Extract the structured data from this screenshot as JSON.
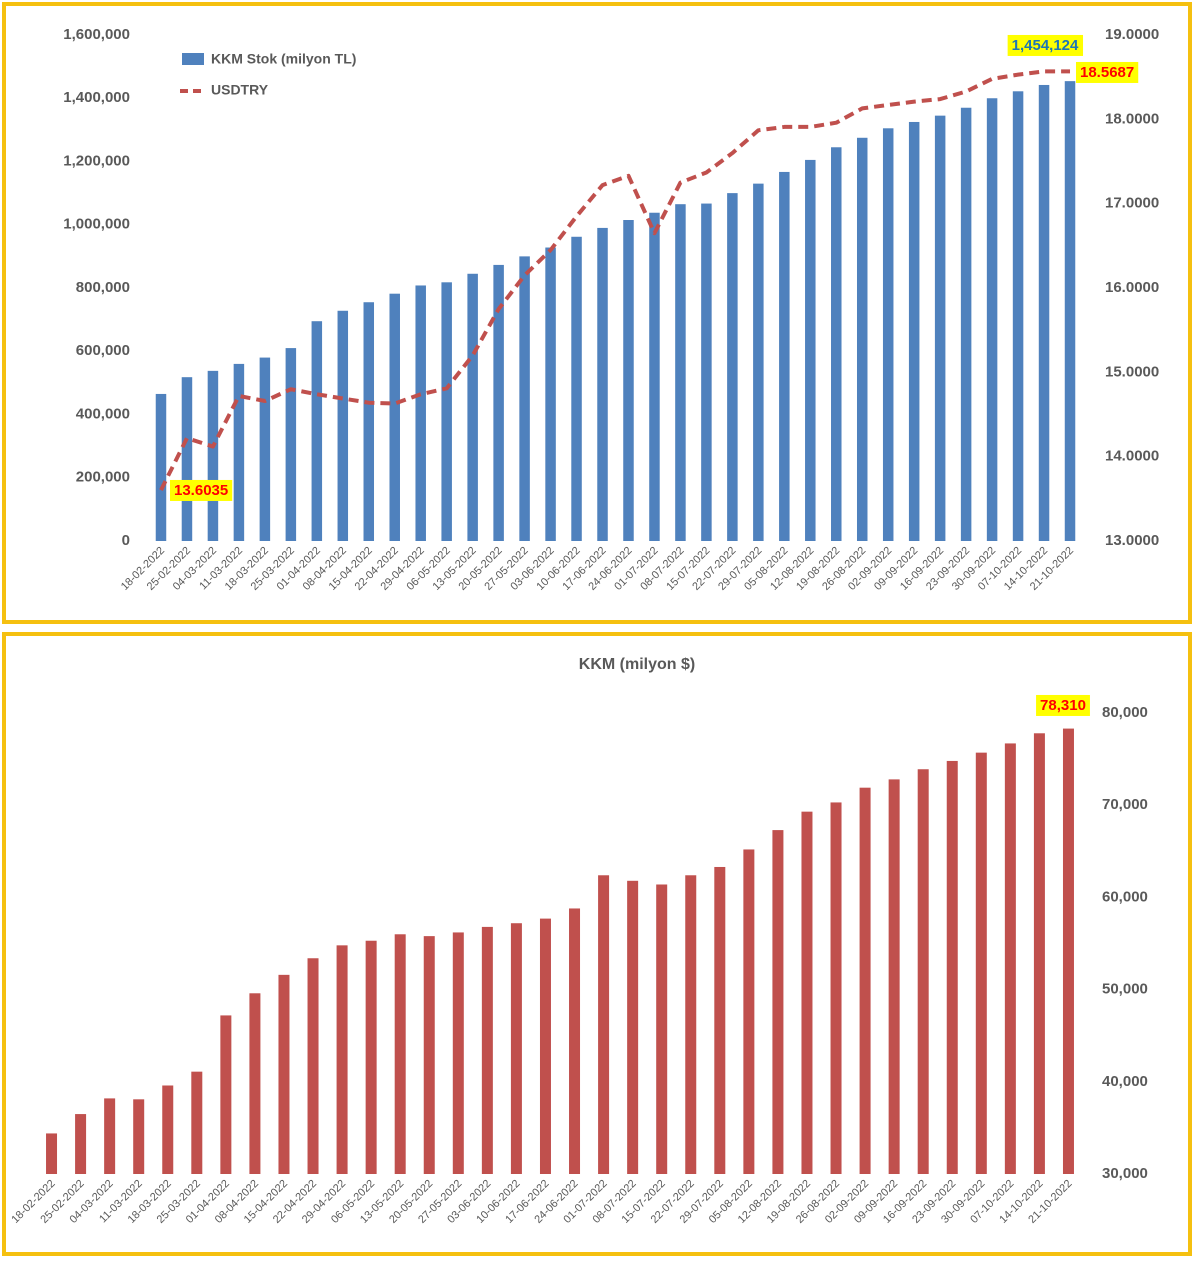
{
  "colors": {
    "frame": "#f5c010",
    "kkm_bar": "#4f81bd",
    "usdtry_line": "#c0504d",
    "usd_bar": "#c0504d",
    "annotation_bg": "#ffff00",
    "annotation_blue": "#1f77b4",
    "annotation_red": "#ff0000"
  },
  "chart_data": [
    {
      "type": "bar",
      "title": "",
      "categories": [
        "18-02-2022",
        "25-02-2022",
        "04-03-2022",
        "11-03-2022",
        "18-03-2022",
        "25-03-2022",
        "01-04-2022",
        "08-04-2022",
        "15-04-2022",
        "22-04-2022",
        "29-04-2022",
        "06-05-2022",
        "13-05-2022",
        "20-05-2022",
        "27-05-2022",
        "03-06-2022",
        "10-06-2022",
        "17-06-2022",
        "24-06-2022",
        "01-07-2022",
        "08-07-2022",
        "15-07-2022",
        "22-07-2022",
        "29-07-2022",
        "05-08-2022",
        "12-08-2022",
        "19-08-2022",
        "26-08-2022",
        "02-09-2022",
        "09-09-2022",
        "16-09-2022",
        "23-09-2022",
        "30-09-2022",
        "07-10-2022",
        "14-10-2022",
        "21-10-2022"
      ],
      "series": [
        {
          "name": "KKM Stok (milyon TL)",
          "type": "bar",
          "axis": "left",
          "values": [
            465000,
            518000,
            538000,
            560000,
            580000,
            610000,
            695000,
            728000,
            755000,
            782000,
            808000,
            818000,
            845000,
            873000,
            900000,
            928000,
            962000,
            990000,
            1015000,
            1038000,
            1065000,
            1067000,
            1100000,
            1130000,
            1167000,
            1205000,
            1245000,
            1275000,
            1305000,
            1325000,
            1345000,
            1370000,
            1400000,
            1422000,
            1442000,
            1454124
          ]
        },
        {
          "name": "USDTRY",
          "type": "line",
          "axis": "right",
          "values": [
            13.6035,
            14.22,
            14.12,
            14.72,
            14.66,
            14.8,
            14.74,
            14.69,
            14.64,
            14.63,
            14.74,
            14.81,
            15.2,
            15.75,
            16.15,
            16.45,
            16.85,
            17.22,
            17.33,
            16.65,
            17.25,
            17.37,
            17.6,
            17.87,
            17.91,
            17.91,
            17.96,
            18.13,
            18.17,
            18.21,
            18.24,
            18.33,
            18.48,
            18.53,
            18.5687,
            18.5687
          ]
        }
      ],
      "y_left": {
        "ylim": [
          0,
          1600000
        ],
        "ticks": [
          "0",
          "200,000",
          "400,000",
          "600,000",
          "800,000",
          "1,000,000",
          "1,200,000",
          "1,400,000",
          "1,600,000"
        ]
      },
      "y_right": {
        "ylim": [
          13,
          19
        ],
        "ticks": [
          "13.0000",
          "14.0000",
          "15.0000",
          "16.0000",
          "17.0000",
          "18.0000",
          "19.0000"
        ]
      },
      "legend": {
        "placement": "top-left"
      },
      "annotations": [
        {
          "text": "13.6035",
          "series": "USDTRY",
          "point": "first",
          "style": "red-on-yellow"
        },
        {
          "text": "1,454,124",
          "series": "KKM Stok (milyon TL)",
          "point": "last",
          "style": "blue-on-yellow"
        },
        {
          "text": "18.5687",
          "series": "USDTRY",
          "point": "last",
          "style": "red-on-yellow"
        }
      ],
      "grid": false
    },
    {
      "type": "bar",
      "title": "KKM (milyon $)",
      "categories": [
        "18-02-2022",
        "25-02-2022",
        "04-03-2022",
        "11-03-2022",
        "18-03-2022",
        "25-03-2022",
        "01-04-2022",
        "08-04-2022",
        "15-04-2022",
        "22-04-2022",
        "29-04-2022",
        "06-05-2022",
        "13-05-2022",
        "20-05-2022",
        "27-05-2022",
        "03-06-2022",
        "10-06-2022",
        "17-06-2022",
        "24-06-2022",
        "01-07-2022",
        "08-07-2022",
        "15-07-2022",
        "22-07-2022",
        "29-07-2022",
        "05-08-2022",
        "12-08-2022",
        "19-08-2022",
        "26-08-2022",
        "02-09-2022",
        "09-09-2022",
        "16-09-2022",
        "23-09-2022",
        "30-09-2022",
        "07-10-2022",
        "14-10-2022",
        "21-10-2022"
      ],
      "series": [
        {
          "name": "",
          "type": "bar",
          "axis": "right",
          "values": [
            34400,
            36500,
            38200,
            38100,
            39600,
            41100,
            47200,
            49600,
            51600,
            53400,
            54800,
            55300,
            56000,
            55800,
            56200,
            56800,
            57200,
            57700,
            58800,
            62400,
            61800,
            61400,
            62400,
            63300,
            65200,
            67300,
            69300,
            70300,
            71900,
            72800,
            73900,
            74800,
            75700,
            76700,
            77800,
            78310
          ]
        }
      ],
      "y_right": {
        "ylim": [
          30000,
          80000
        ],
        "ticks": [
          "30,000",
          "40,000",
          "50,000",
          "60,000",
          "70,000",
          "80,000"
        ]
      },
      "annotations": [
        {
          "text": "78,310",
          "point": "last",
          "style": "red-on-yellow"
        }
      ],
      "grid": false
    }
  ]
}
